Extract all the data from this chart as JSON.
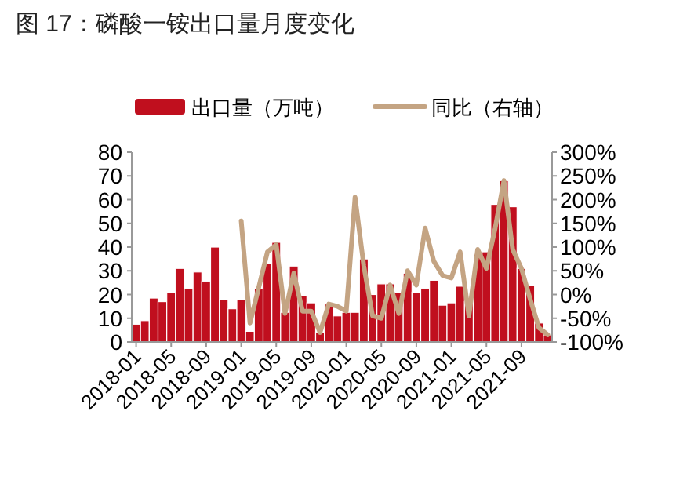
{
  "chart_data": {
    "type": "bar",
    "title": "图 17：磷酸一铵出口量月度变化",
    "categories": [
      "2018-01",
      null,
      null,
      null,
      "2018-05",
      null,
      null,
      null,
      "2018-09",
      null,
      null,
      null,
      "2019-01",
      null,
      null,
      null,
      "2019-05",
      null,
      null,
      null,
      "2019-09",
      null,
      null,
      null,
      "2020-01",
      null,
      null,
      null,
      "2020-05",
      null,
      null,
      null,
      "2020-09",
      null,
      null,
      null,
      "2021-01",
      null,
      null,
      null,
      "2021-05",
      null,
      null,
      null,
      "2021-09",
      null,
      null,
      null
    ],
    "series": [
      {
        "name": "出口量（万吨）",
        "color": "#c00f1e",
        "values": [
          7.5,
          9,
          18.5,
          17,
          21,
          31,
          22.5,
          29.5,
          25.5,
          40,
          18,
          14,
          18,
          4.5,
          22.5,
          33,
          42,
          12.5,
          32,
          19.5,
          16.5,
          4,
          16,
          11,
          12.5,
          12.5,
          35,
          20,
          24.5,
          24.5,
          21,
          29,
          21,
          22.5,
          26,
          15.5,
          16.5,
          23.5,
          17,
          37,
          38,
          58,
          68,
          57,
          31,
          24,
          8,
          3
        ]
      },
      {
        "name": "同比（右轴）",
        "type": "line",
        "axis": "y2",
        "color": "#c4a483",
        "values": [
          null,
          null,
          null,
          null,
          null,
          null,
          null,
          null,
          null,
          null,
          null,
          null,
          155,
          -60,
          15,
          90,
          105,
          -40,
          45,
          -35,
          -35,
          -80,
          -20,
          -25,
          -35,
          205,
          60,
          -45,
          -50,
          20,
          -40,
          50,
          20,
          140,
          70,
          40,
          35,
          90,
          -45,
          95,
          55,
          140,
          240,
          95,
          55,
          -10,
          -70,
          -85
        ]
      }
    ],
    "ylim": [
      0,
      80
    ],
    "yticks": [
      0,
      10,
      20,
      30,
      40,
      50,
      60,
      70,
      80
    ],
    "y2lim": [
      -100,
      300
    ],
    "y2ticks": [
      {
        "value": -100,
        "label": "-100%"
      },
      {
        "value": -50,
        "label": "-50%"
      },
      {
        "value": 0,
        "label": "0%"
      },
      {
        "value": 50,
        "label": "50%"
      },
      {
        "value": 100,
        "label": "100%"
      },
      {
        "value": 150,
        "label": "150%"
      },
      {
        "value": 200,
        "label": "200%"
      },
      {
        "value": 250,
        "label": "250%"
      },
      {
        "value": 300,
        "label": "300%"
      }
    ],
    "legend": "top"
  }
}
